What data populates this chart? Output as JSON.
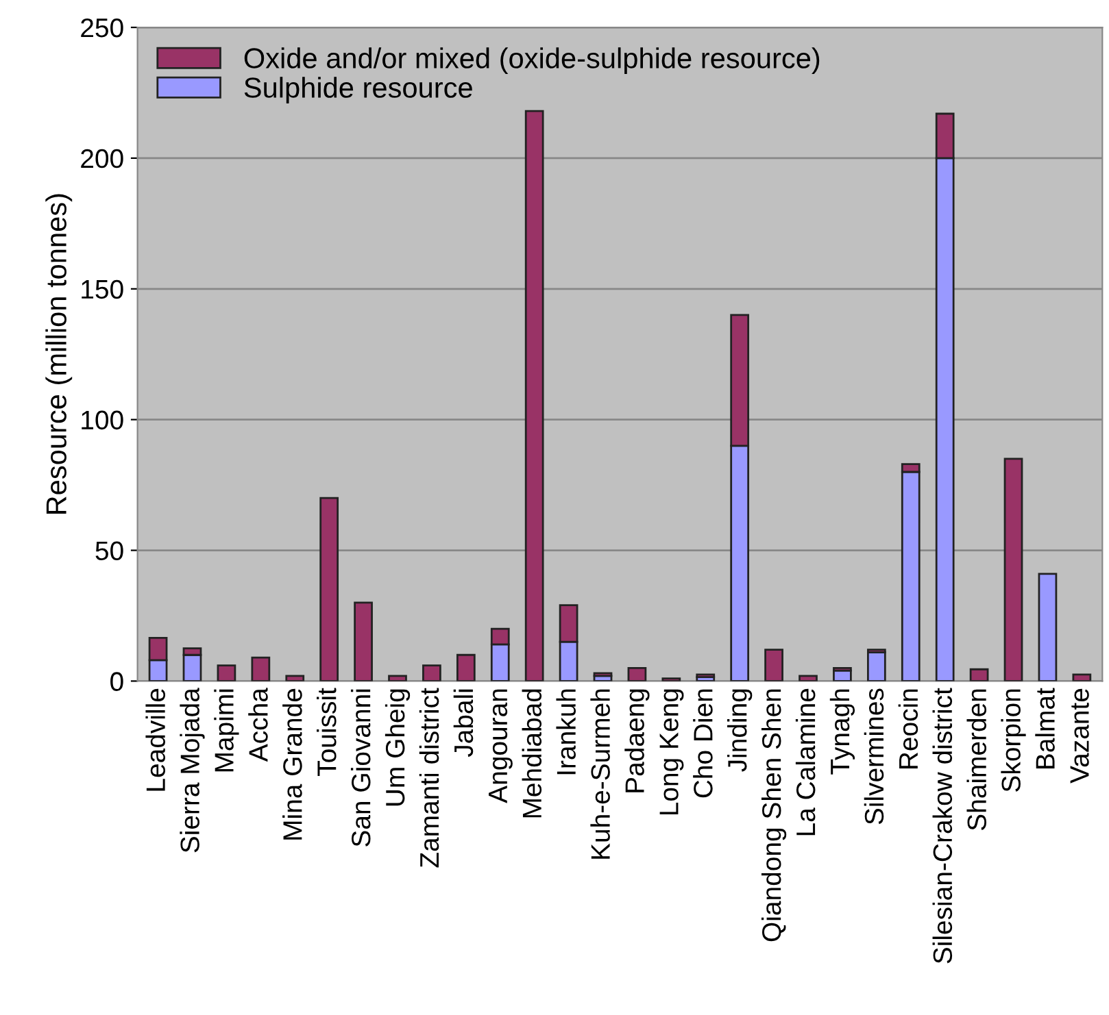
{
  "chart_data": {
    "type": "bar",
    "stacked": true,
    "ylabel": "Resource (million tonnes)",
    "categories": [
      "Leadville",
      "Sierra Mojada",
      "Mapimi",
      "Accha",
      "Mina Grande",
      "Touissit",
      "San Giovanni",
      "Um Gheig",
      "Zamanti district",
      "Jabali",
      "Angouran",
      "Mehdiabad",
      "Irankuh",
      "Kuh-e-Surmeh",
      "Padaeng",
      "Long Keng",
      "Cho Dien",
      "Jinding",
      "Qiandong Shen Shen",
      "La Calamine",
      "Tynagh",
      "Silvermines",
      "Reocin",
      "Silesian-Crakow district",
      "Shaimerden",
      "Skorpion",
      "Balmat",
      "Vazante"
    ],
    "series": [
      {
        "name": "Sulphide resource",
        "color": "#9999ff",
        "values": [
          8,
          10,
          null,
          null,
          null,
          null,
          null,
          null,
          null,
          null,
          14,
          null,
          15,
          2,
          null,
          null,
          1.5,
          90,
          null,
          null,
          4,
          11,
          80,
          200,
          null,
          null,
          41,
          null
        ]
      },
      {
        "name": "Oxide and/or mixed (oxide-sulphide resource)",
        "color": "#993366",
        "values": [
          8.5,
          2.5,
          6,
          9,
          2,
          70,
          30,
          2,
          6,
          10,
          6,
          218,
          14,
          1,
          5,
          1,
          1,
          50,
          12,
          2,
          1,
          1,
          3,
          17,
          4.5,
          85,
          null,
          2.5
        ]
      }
    ],
    "ylim": [
      0,
      250
    ],
    "yticks": [
      0,
      50,
      100,
      150,
      200,
      250
    ],
    "grid": "y",
    "legend": "top left"
  }
}
